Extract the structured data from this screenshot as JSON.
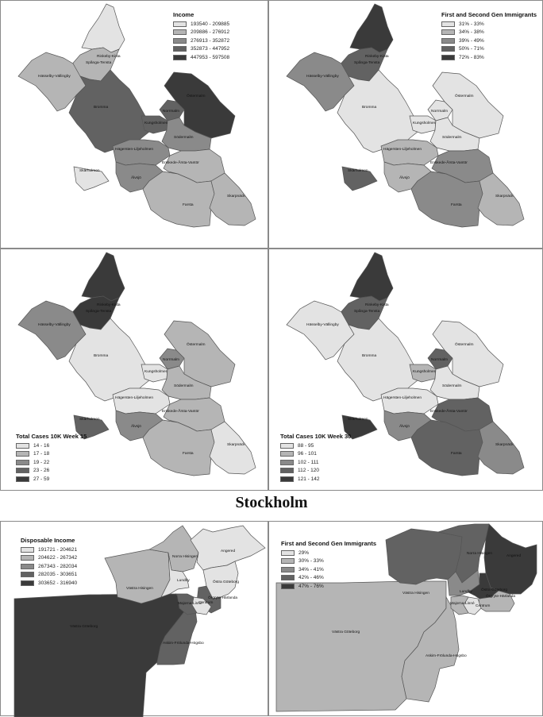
{
  "city_title": "Stockholm",
  "stockholm_districts": {
    "rinkeby": "Rinkeby-Kista",
    "spanga": "Spånga-Tensta",
    "hasselby": "Hässelby-Vällingby",
    "bromma": "Bromma",
    "kungsholmen": "Kungsholmen",
    "norrmalm": "Norrmalm",
    "ostermalm": "Östermalm",
    "sodermalm": "Södermalm",
    "hagersten": "Hägersten-Liljeholmen",
    "enskede": "Enskede-Årsta-Vantör",
    "skarholmen": "Skärholmen",
    "alvsjo": "Älvsjö",
    "farsta": "Farsta",
    "skarpnack": "Skarpnäck"
  },
  "goteborg_districts": {
    "angered": "Angered",
    "norra_hisingen": "Norra Hisingen",
    "vastra_hisingen": "Västra Hisingen",
    "lundby": "Lundby",
    "ostra_goteborg": "Östra Göteborg",
    "orgryte": "Örgryte-Härlanda",
    "centrum": "Centrum",
    "majorna": "Majorna-Linné",
    "askim": "Askim-Frölunda-Högsbo",
    "vastra_goteborg": "Västra Göteborg"
  },
  "maps": {
    "income": {
      "legend_title": "Income",
      "legend": [
        "193540 - 209885",
        "209886 - 276912",
        "276913 - 352872",
        "352873 - 447952",
        "447953 - 597508"
      ],
      "values": {
        "rinkeby": 0,
        "spanga": 1,
        "hasselby": 1,
        "bromma": 3,
        "kungsholmen": 3,
        "norrmalm": 3,
        "ostermalm": 4,
        "sodermalm": 2,
        "hagersten": 2,
        "enskede": 1,
        "skarholmen": 0,
        "alvsjo": 2,
        "farsta": 1,
        "skarpnack": 1
      }
    },
    "immigrants_sthlm": {
      "legend_title": "First and Second Gen Immigrants",
      "legend": [
        "31% - 33%",
        "34% - 38%",
        "39% - 49%",
        "50% - 71%",
        "72% - 83%"
      ],
      "values": {
        "rinkeby": 4,
        "spanga": 3,
        "hasselby": 2,
        "bromma": 0,
        "kungsholmen": 0,
        "norrmalm": 0,
        "ostermalm": 0,
        "sodermalm": 0,
        "hagersten": 1,
        "enskede": 2,
        "skarholmen": 3,
        "alvsjo": 1,
        "farsta": 2,
        "skarpnack": 1
      }
    },
    "week15": {
      "legend_title": "Total Cases 10K Week 15",
      "legend": [
        "14 - 16",
        "17 - 18",
        "19 - 22",
        "23 - 26",
        "27 - 59"
      ],
      "values": {
        "rinkeby": 4,
        "spanga": 4,
        "hasselby": 2,
        "bromma": 0,
        "kungsholmen": 0,
        "norrmalm": 2,
        "ostermalm": 1,
        "sodermalm": 1,
        "hagersten": 0,
        "enskede": 1,
        "skarholmen": 3,
        "alvsjo": 2,
        "farsta": 1,
        "skarpnack": 0
      }
    },
    "week30": {
      "legend_title": "Total Cases 10K Week 30",
      "legend": [
        "88 - 95",
        "96 - 101",
        "102 - 111",
        "112 - 120",
        "121 - 142"
      ],
      "values": {
        "rinkeby": 4,
        "spanga": 3,
        "hasselby": 0,
        "bromma": 0,
        "kungsholmen": 1,
        "norrmalm": 3,
        "ostermalm": 0,
        "sodermalm": 0,
        "hagersten": 0,
        "enskede": 3,
        "skarholmen": 4,
        "alvsjo": 2,
        "farsta": 3,
        "skarpnack": 2
      }
    },
    "disposable": {
      "legend_title": "Disposable Income",
      "legend": [
        "191721 - 204621",
        "204622 - 267342",
        "267343 - 282034",
        "282035 - 303651",
        "303652 - 316940"
      ],
      "values": {
        "angered": 0,
        "norra_hisingen": 1,
        "vastra_hisingen": 1,
        "lundby": 0,
        "ostra_goteborg": 0,
        "orgryte": 3,
        "centrum": 0,
        "majorna": 3,
        "askim": 3,
        "vastra_goteborg": 4
      }
    },
    "immigrants_gbg": {
      "legend_title": "First and Second Gen Immigrants",
      "legend": [
        "29%",
        "30% - 33%",
        "34% - 41%",
        "42% - 46%",
        "47% - 76%"
      ],
      "values": {
        "angered": 4,
        "norra_hisingen": 3,
        "vastra_hisingen": 3,
        "lundby": 2,
        "ostra_goteborg": 4,
        "orgryte": 1,
        "centrum": 0,
        "majorna": 1,
        "askim": 1,
        "vastra_goteborg": 1
      }
    }
  },
  "colors": [
    "#e3e3e3",
    "#b5b5b5",
    "#8a8a8a",
    "#626262",
    "#3a3a3a"
  ]
}
